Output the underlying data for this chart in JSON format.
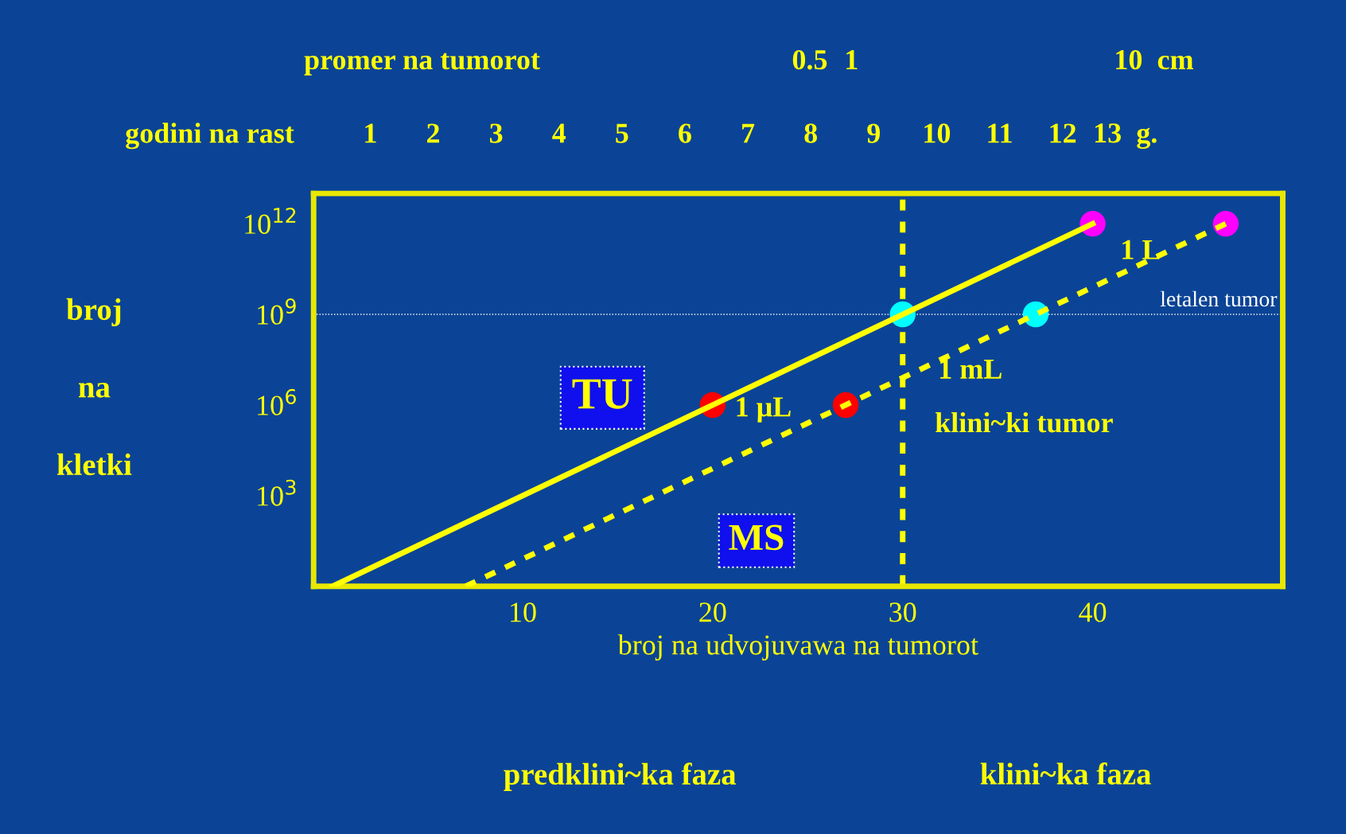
{
  "chart_data": {
    "type": "line",
    "xlabel": "broj na udvojuvawa na tumorot",
    "ylabel": "broj na kletki",
    "x2label": "godini na rast",
    "xlim": [
      -1,
      50
    ],
    "xticks": [
      10,
      20,
      30,
      40
    ],
    "x2lim": [
      0.1,
      15.5
    ],
    "x2ticks": [
      1,
      2,
      3,
      4,
      5,
      6,
      7,
      8,
      9,
      10,
      11,
      12,
      {
        "value": 13,
        "label": "13  g."
      }
    ],
    "ylim": [
      1,
      10000000000000.0
    ],
    "yticks": [
      {
        "value": 1000,
        "label": "10$^{3}$"
      },
      {
        "value": 1000000,
        "label": "10$^{6}$"
      },
      {
        "value": 1000000000,
        "label": "10$^{9}$"
      },
      {
        "value": 1000000000000,
        "label": "10$^{12}$"
      }
    ],
    "log": "y",
    "grid": false,
    "series": [
      {
        "x": [
          0,
          30,
          40
        ],
        "values": [
          1,
          1000000000.0,
          1000000000000.0
        ],
        "color": "#ffff00",
        "line_style": "solid",
        "marker": "none"
      },
      {
        "x": [
          7,
          37,
          47
        ],
        "values": [
          1,
          1000000000.0,
          1000000000000.0
        ],
        "color": "#ffff00",
        "line_style": "dashed",
        "marker": "none"
      },
      {
        "type": "scatter",
        "x": [
          40,
          47
        ],
        "values": [
          1000000000000.0,
          1000000000000.0
        ],
        "color": "#ff00ff",
        "marker": "circle"
      },
      {
        "type": "scatter",
        "x": [
          30,
          37
        ],
        "values": [
          1000000000.0,
          1000000000.0
        ],
        "color": "#00ffff",
        "marker": "circle"
      },
      {
        "type": "scatter",
        "x": [
          20,
          27
        ],
        "values": [
          1000000.0,
          1000000.0
        ],
        "color": "#ff0000",
        "marker": "circle"
      }
    ],
    "ref_lines": [
      {
        "axis": "x",
        "value": 30,
        "color": "#ffff00",
        "line_style": "dashed"
      },
      {
        "axis": "y",
        "value": 1000000000.0,
        "label": "letalen tumor",
        "color": "#ffffff",
        "line_style": "dotted"
      }
    ],
    "annotations": [
      {
        "text": "1 μL",
        "x": 20,
        "y": 1000000.0
      },
      {
        "text": "1 mL",
        "x": 30,
        "y": 1000000000.0
      },
      {
        "text": "1 L",
        "x": 40,
        "y": 1000000000000.0
      },
      "TU",
      "MS",
      "klini~ki tumor",
      "promer na tumorot",
      "0.5",
      "1",
      "10  cm",
      "predklini~ka faza",
      "klini~ka faza"
    ]
  }
}
